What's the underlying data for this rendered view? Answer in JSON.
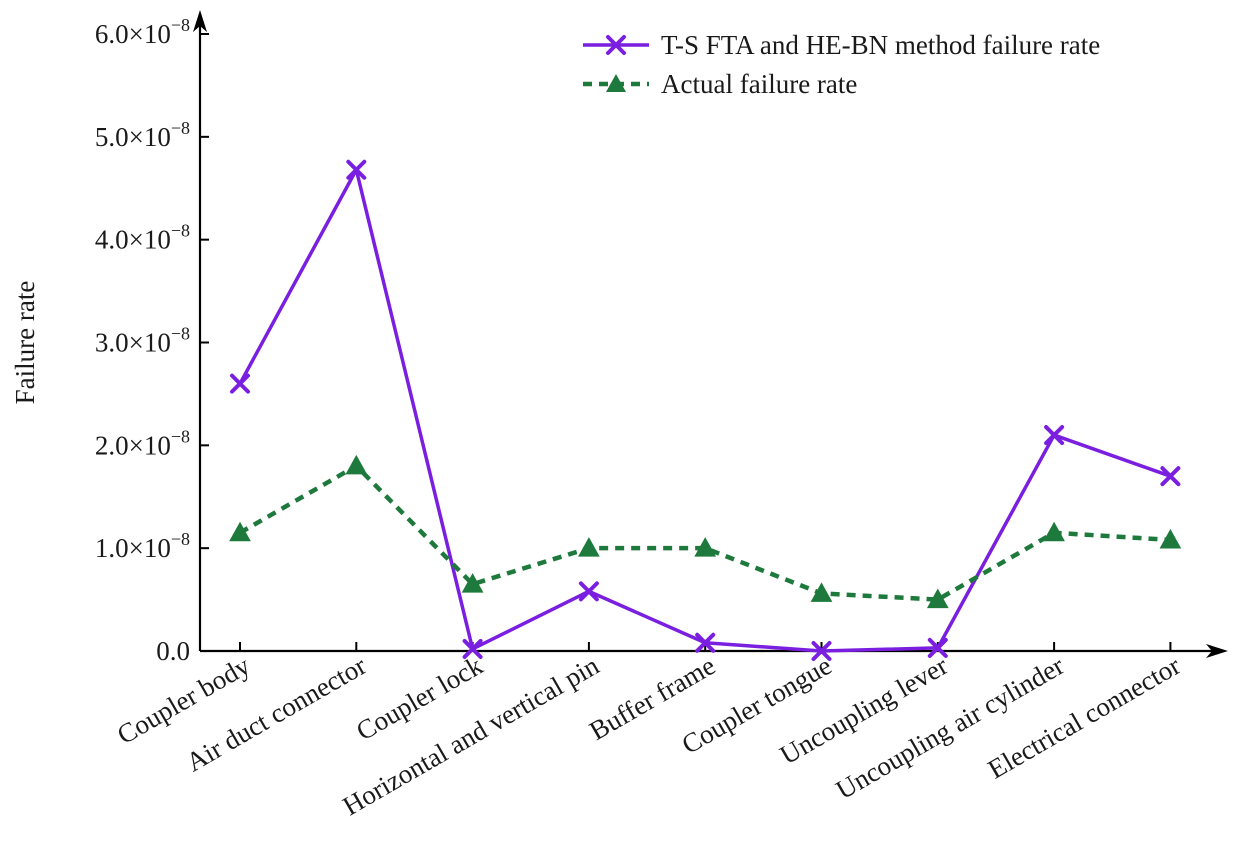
{
  "chart_data": {
    "type": "line",
    "title": "",
    "xlabel": "",
    "ylabel": "Failure rate",
    "ylim": [
      0,
      6e-08
    ],
    "yticks": [
      0,
      1e-08,
      2e-08,
      3e-08,
      4e-08,
      5e-08,
      6e-08
    ],
    "ytick_labels": [
      {
        "mantissa": "0.0",
        "exp": ""
      },
      {
        "mantissa": "1.0×10",
        "exp": "−8"
      },
      {
        "mantissa": "2.0×10",
        "exp": "−8"
      },
      {
        "mantissa": "3.0×10",
        "exp": "−8"
      },
      {
        "mantissa": "4.0×10",
        "exp": "−8"
      },
      {
        "mantissa": "5.0×10",
        "exp": "−8"
      },
      {
        "mantissa": "6.0×10",
        "exp": "−8"
      }
    ],
    "categories": [
      "Coupler body",
      "Air duct connector",
      "Coupler lock",
      "Horizontal and vertical pin",
      "Buffer frame",
      "Coupler tongue",
      "Uncoupling lever",
      "Uncoupling air cylinder",
      "Electrical connector"
    ],
    "series": [
      {
        "name": "T-S FTA and HE-BN method failure rate",
        "color": "#7a1fe0",
        "marker": "x",
        "line": "solid",
        "values": [
          2.6e-08,
          4.68e-08,
          2e-10,
          5.8e-09,
          8e-10,
          0.0,
          3e-10,
          2.1e-08,
          1.7e-08
        ]
      },
      {
        "name": "Actual failure rate",
        "color": "#1e7a3c",
        "marker": "triangle",
        "line": "dashed",
        "values": [
          1.15e-08,
          1.8e-08,
          6.5e-09,
          1e-08,
          1e-08,
          5.6e-09,
          5e-09,
          1.15e-08,
          1.08e-08
        ]
      }
    ],
    "legend_position": "top-right"
  }
}
